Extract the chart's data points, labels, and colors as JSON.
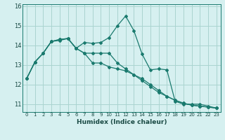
{
  "xlabel": "Humidex (Indice chaleur)",
  "background_color": "#d6f0f0",
  "grid_color": "#aad4d0",
  "line_color": "#1a7a6e",
  "xlim": [
    -0.5,
    23.5
  ],
  "ylim": [
    10.6,
    16.1
  ],
  "yticks": [
    11,
    12,
    13,
    14,
    15,
    16
  ],
  "xticks": [
    0,
    1,
    2,
    3,
    4,
    5,
    6,
    7,
    8,
    9,
    10,
    11,
    12,
    13,
    14,
    15,
    16,
    17,
    18,
    19,
    20,
    21,
    22,
    23
  ],
  "series": [
    [
      12.3,
      13.15,
      13.6,
      14.2,
      14.25,
      14.35,
      13.85,
      14.15,
      14.1,
      14.15,
      14.4,
      15.0,
      15.5,
      14.75,
      13.55,
      12.75,
      12.8,
      12.75,
      11.15,
      11.0,
      11.0,
      11.0,
      10.9,
      10.8
    ],
    [
      12.3,
      13.15,
      13.6,
      14.2,
      14.3,
      14.35,
      13.85,
      13.6,
      13.6,
      13.6,
      13.6,
      13.1,
      12.8,
      12.5,
      12.2,
      11.9,
      11.6,
      11.4,
      11.2,
      11.05,
      10.95,
      10.9,
      10.85,
      10.8
    ],
    [
      12.3,
      13.15,
      13.6,
      14.2,
      14.3,
      14.35,
      13.85,
      13.6,
      13.1,
      13.1,
      12.9,
      12.8,
      12.7,
      12.5,
      12.3,
      12.0,
      11.7,
      11.4,
      11.2,
      11.05,
      10.95,
      10.9,
      10.85,
      10.8
    ]
  ]
}
